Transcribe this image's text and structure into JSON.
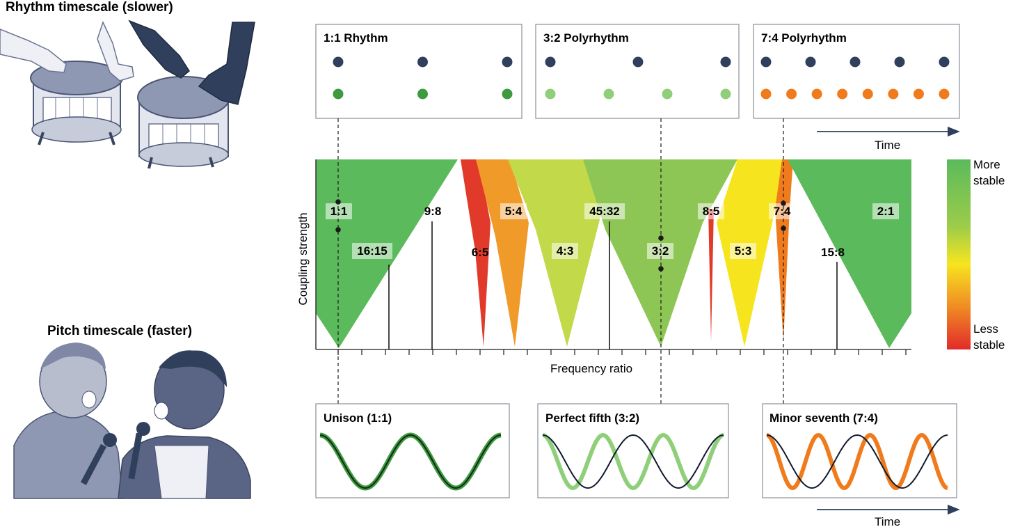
{
  "left_panel": {
    "rhythm_title": "Rhythm timescale (slower)",
    "pitch_title": "Pitch timescale (faster)"
  },
  "rhythm_boxes": [
    {
      "title": "1:1 Rhythm",
      "top_count": 3,
      "bottom_count": 3,
      "bottom_color": "#3e9a3e"
    },
    {
      "title": "3:2 Polyrhythm",
      "top_count": 3,
      "bottom_count": 4,
      "bottom_color": "#8fcf7a"
    },
    {
      "title": "7:4 Polyrhythm",
      "top_count": 5,
      "bottom_count": 8,
      "bottom_color": "#f07b1c"
    }
  ],
  "top_time_label": "Time",
  "chart": {
    "ylabel": "Coupling strength",
    "xlabel": "Frequency ratio",
    "ratio_labels": [
      "1:1",
      "9:8",
      "16:15",
      "6:5",
      "5:4",
      "4:3",
      "45:32",
      "3:2",
      "8:5",
      "5:3",
      "7:4",
      "15:8",
      "2:1"
    ]
  },
  "colorbar": {
    "top_label_1": "More",
    "top_label_2": "stable",
    "bottom_label_1": "Less",
    "bottom_label_2": "stable"
  },
  "wave_boxes": [
    {
      "title": "Unison (1:1)",
      "wave_color": "#3e9a3e",
      "ratio": 1
    },
    {
      "title": "Perfect fifth (3:2)",
      "wave_color": "#8fcf7a",
      "ratio": 1.5
    },
    {
      "title": "Minor seventh (7:4)",
      "wave_color": "#f07b1c",
      "ratio": 1.75
    }
  ],
  "bottom_time_label": "Time",
  "colors": {
    "navy": "#2f3f5c",
    "stable_green": "#5bba5b",
    "unstable_red": "#e23a2a",
    "yellow": "#f6e51e",
    "orange": "#f09a2a"
  }
}
